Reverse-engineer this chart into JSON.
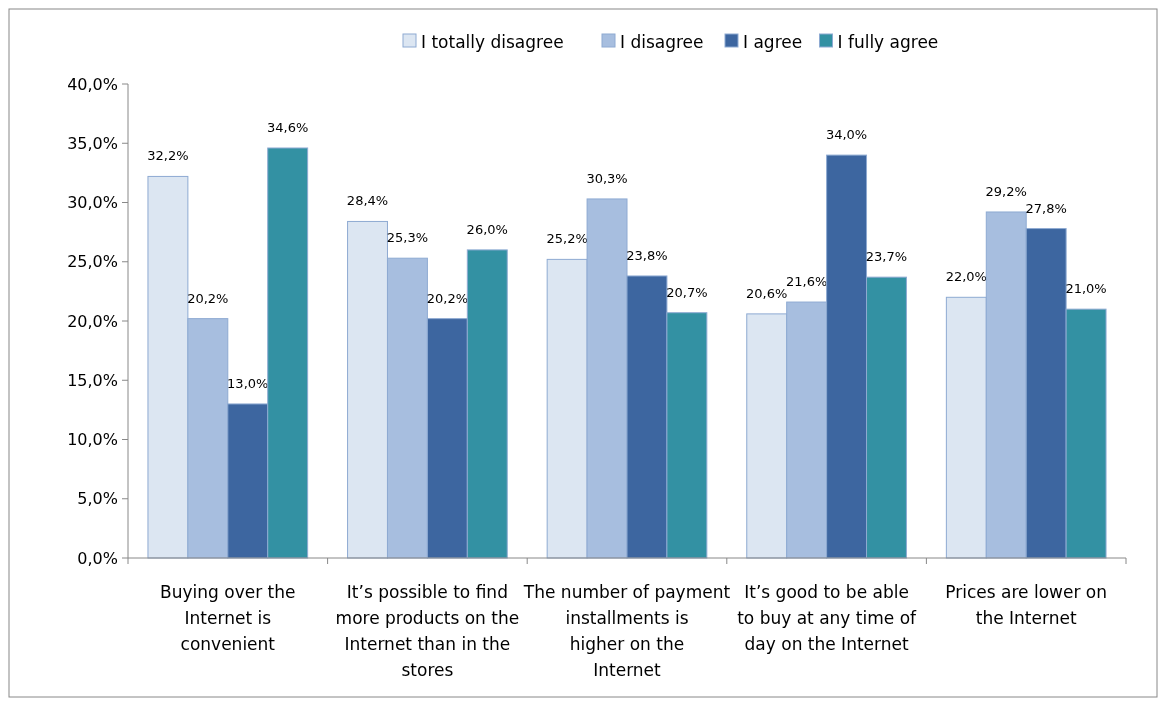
{
  "chart_data": {
    "type": "bar",
    "categories": [
      "Buying over the Internet is convenient",
      "It’s possible to find more products on the Internet than in the stores",
      "The number of payment installments is higher on the Internet",
      "It’s good to be able to buy at any time of day on the Internet",
      "Prices are lower on the Internet"
    ],
    "series": [
      {
        "name": "I totally disagree",
        "color": "#dce6f2",
        "values": [
          32.2,
          28.4,
          25.2,
          20.6,
          22.0
        ],
        "value_labels": [
          "32,2%",
          "28,4%",
          "25,2%",
          "20,6%",
          "22,0%"
        ]
      },
      {
        "name": "I disagree",
        "color": "#a7bedf",
        "values": [
          20.2,
          25.3,
          30.3,
          21.6,
          29.2
        ],
        "value_labels": [
          "20,2%",
          "25,3%",
          "30,3%",
          "21,6%",
          "29,2%"
        ]
      },
      {
        "name": "I agree",
        "color": "#3d66a0",
        "values": [
          13.0,
          20.2,
          23.8,
          34.0,
          27.8
        ],
        "value_labels": [
          "13,0%",
          "20,2%",
          "23,8%",
          "34,0%",
          "27,8%"
        ]
      },
      {
        "name": "I fully agree",
        "color": "#3391a3",
        "values": [
          34.6,
          26.0,
          20.7,
          23.7,
          21.0
        ],
        "value_labels": [
          "34,6%",
          "26,0%",
          "20,7%",
          "23,7%",
          "21,0%"
        ]
      }
    ],
    "ylim": [
      0,
      40
    ],
    "yticks": [
      {
        "value": 0,
        "label": "0,0%"
      },
      {
        "value": 5,
        "label": "5,0%"
      },
      {
        "value": 10,
        "label": "10,0%"
      },
      {
        "value": 15,
        "label": "15,0%"
      },
      {
        "value": 20,
        "label": "20,0%"
      },
      {
        "value": 25,
        "label": "25,0%"
      },
      {
        "value": 30,
        "label": "30,0%"
      },
      {
        "value": 35,
        "label": "35,0%"
      },
      {
        "value": 40,
        "label": "40,0%"
      }
    ],
    "grid": false,
    "legend": "top"
  }
}
